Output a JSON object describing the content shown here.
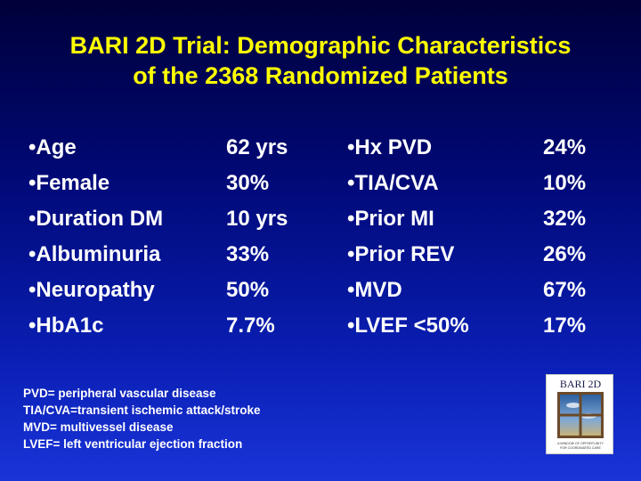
{
  "title": {
    "line1": "BARI 2D Trial: Demographic Characteristics",
    "line2": "of the 2368 Randomized Patients"
  },
  "left_items": [
    {
      "label": "•Age",
      "value": "62 yrs"
    },
    {
      "label": "•Female",
      "value": "30%"
    },
    {
      "label": "•Duration DM",
      "value": "10 yrs"
    },
    {
      "label": "•Albuminuria",
      "value": "33%"
    },
    {
      "label": "•Neuropathy",
      "value": "50%"
    },
    {
      "label": "•HbA1c",
      "value": "7.7%"
    }
  ],
  "right_items": [
    {
      "label": "•Hx PVD",
      "value": "24%"
    },
    {
      "label": "•TIA/CVA",
      "value": "10%"
    },
    {
      "label": "•Prior MI",
      "value": "32%"
    },
    {
      "label": "•Prior REV",
      "value": "26%"
    },
    {
      "label": "•MVD",
      "value": "67%"
    },
    {
      "label": "•LVEF <50%",
      "value": "17%"
    }
  ],
  "footnotes": [
    "PVD= peripheral vascular disease",
    "TIA/CVA=transient ischemic attack/stroke",
    "MVD= multivessel disease",
    "LVEF= left ventricular ejection fraction"
  ],
  "logo": {
    "text": "BARI 2D",
    "tagline1": "A WINDOW OF OPPORTUNITY",
    "tagline2": "FOR COORDINATED CARE"
  },
  "colors": {
    "title": "#ffff00",
    "text": "#ffffff",
    "background_top": "#00003a",
    "background_bottom": "#1a34d8"
  }
}
